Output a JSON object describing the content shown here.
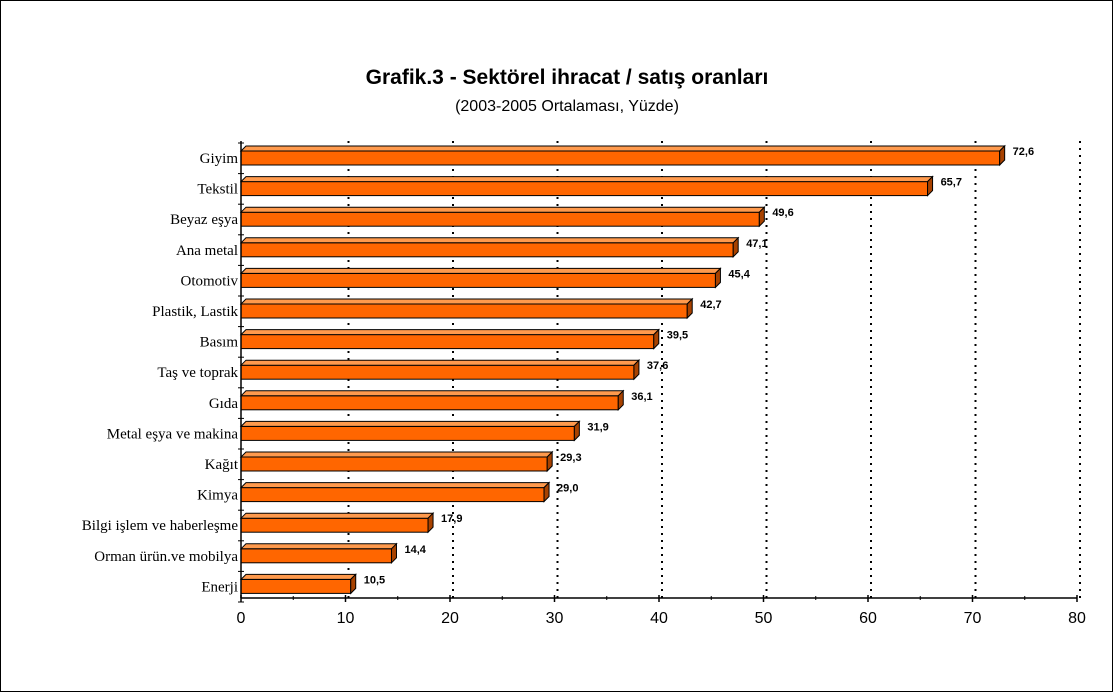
{
  "chart_data": {
    "type": "bar",
    "orientation": "horizontal",
    "title": "Grafik.3 - Sektörel ihracat / satış oranları",
    "subtitle": "(2003-2005 Ortalaması, Yüzde)",
    "categories": [
      "Giyim",
      "Tekstil",
      "Beyaz eşya",
      "Ana metal",
      "Otomotiv",
      "Plastik, Lastik",
      "Basım",
      "Taş ve toprak",
      "Gıda",
      "Metal eşya ve makina",
      "Kağıt",
      "Kimya",
      "Bilgi işlem ve haberleşme",
      "Orman ürün.ve mobilya",
      "Enerji"
    ],
    "values": [
      72.6,
      65.7,
      49.6,
      47.1,
      45.4,
      42.7,
      39.5,
      37.6,
      36.1,
      31.9,
      29.3,
      29.0,
      17.9,
      14.4,
      10.5
    ],
    "data_labels": [
      "72,6",
      "65,7",
      "49,6",
      "47,1",
      "45,4",
      "42,7",
      "39,5",
      "37,6",
      "36,1",
      "31,9",
      "29,3",
      "29,0",
      "17,9",
      "14,4",
      "10,5"
    ],
    "xlim": [
      0,
      80
    ],
    "xticks": [
      0,
      10,
      20,
      30,
      40,
      50,
      60,
      70,
      80
    ],
    "xtick_labels": [
      "0",
      "10",
      "20",
      "30",
      "40",
      "50",
      "60",
      "70",
      "80"
    ],
    "grid": "vertical dotted",
    "legend": "none",
    "bar_colors": {
      "front": "#ff6600",
      "top": "#ff9a4d",
      "side": "#a84200",
      "outline": "#000000"
    }
  }
}
